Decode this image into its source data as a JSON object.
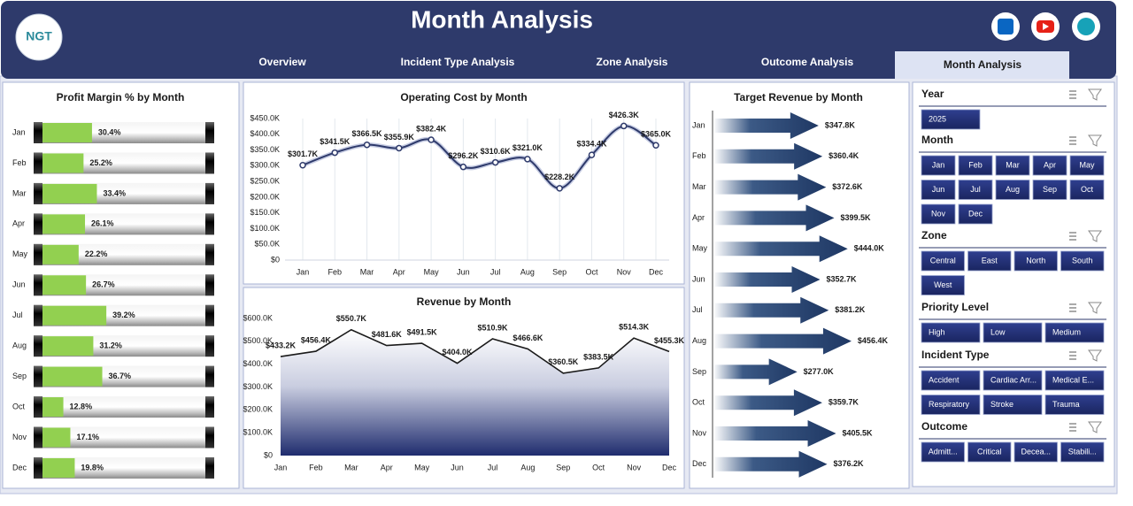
{
  "header": {
    "title": "Month Analysis",
    "logo": "NGT",
    "tabs": [
      "Overview",
      "Incident Type Analysis",
      "Zone Analysis",
      "Outcome Analysis",
      "Month Analysis"
    ],
    "active_tab": "Month Analysis"
  },
  "chart_data": [
    {
      "type": "bar",
      "orientation": "horizontal",
      "title": "Profit Margin % by Month",
      "categories": [
        "Jan",
        "Feb",
        "Mar",
        "Apr",
        "May",
        "Jun",
        "Jul",
        "Aug",
        "Sep",
        "Oct",
        "Nov",
        "Dec"
      ],
      "values": [
        30.4,
        25.2,
        33.4,
        26.1,
        22.2,
        26.7,
        39.2,
        31.2,
        36.7,
        12.8,
        17.1,
        19.8
      ],
      "value_labels": [
        "30.4%",
        "25.2%",
        "33.4%",
        "26.1%",
        "22.2%",
        "26.7%",
        "39.2%",
        "31.2%",
        "36.7%",
        "12.8%",
        "17.1%",
        "19.8%"
      ],
      "color": "#92d050",
      "xlim": [
        0,
        100
      ]
    },
    {
      "type": "line",
      "title": "Operating Cost by Month",
      "categories": [
        "Jan",
        "Feb",
        "Mar",
        "Apr",
        "May",
        "Jun",
        "Jul",
        "Aug",
        "Sep",
        "Oct",
        "Nov",
        "Dec"
      ],
      "values": [
        301700,
        341500,
        366500,
        355900,
        382400,
        296200,
        310600,
        321000,
        228200,
        334400,
        426300,
        365000
      ],
      "value_labels": [
        "$301.7K",
        "$341.5K",
        "$366.5K",
        "$355.9K",
        "$382.4K",
        "$296.2K",
        "$310.6K",
        "$321.0K",
        "$228.2K",
        "$334.4K",
        "$426.3K",
        "$365.0K"
      ],
      "color": "#2e3a6b",
      "ylim": [
        0,
        450000
      ],
      "yticks": [
        {
          "value": 0,
          "label": "$0"
        },
        {
          "value": 50000,
          "label": "$50.0K"
        },
        {
          "value": 100000,
          "label": "$100.0K"
        },
        {
          "value": 150000,
          "label": "$150.0K"
        },
        {
          "value": 200000,
          "label": "$200.0K"
        },
        {
          "value": 250000,
          "label": "$250.0K"
        },
        {
          "value": 300000,
          "label": "$300.0K"
        },
        {
          "value": 350000,
          "label": "$350.0K"
        },
        {
          "value": 400000,
          "label": "$400.0K"
        },
        {
          "value": 450000,
          "label": "$450.0K"
        }
      ]
    },
    {
      "type": "area",
      "title": "Revenue by Month",
      "categories": [
        "Jan",
        "Feb",
        "Mar",
        "Apr",
        "May",
        "Jun",
        "Jul",
        "Aug",
        "Sep",
        "Oct",
        "Nov",
        "Dec"
      ],
      "values": [
        433200,
        456400,
        550700,
        481600,
        491500,
        404000,
        510900,
        466600,
        360500,
        383500,
        514300,
        455300
      ],
      "value_labels": [
        "$433.2K",
        "$456.4K",
        "$550.7K",
        "$481.6K",
        "$491.5K",
        "$404.0K",
        "$510.9K",
        "$466.6K",
        "$360.5K",
        "$383.5K",
        "$514.3K",
        "$455.3K"
      ],
      "color": "#1f2c6e",
      "ylim": [
        0,
        600000
      ],
      "yticks": [
        {
          "value": 0,
          "label": "$0"
        },
        {
          "value": 100000,
          "label": "$100.0K"
        },
        {
          "value": 200000,
          "label": "$200.0K"
        },
        {
          "value": 300000,
          "label": "$300.0K"
        },
        {
          "value": 400000,
          "label": "$400.0K"
        },
        {
          "value": 500000,
          "label": "$500.0K"
        },
        {
          "value": 600000,
          "label": "$600.0K"
        }
      ]
    },
    {
      "type": "arrow",
      "title": "Target Revenue by Month",
      "categories": [
        "Jan",
        "Feb",
        "Mar",
        "Apr",
        "May",
        "Jun",
        "Jul",
        "Aug",
        "Sep",
        "Oct",
        "Nov",
        "Dec"
      ],
      "values": [
        347800,
        360400,
        372600,
        399500,
        444000,
        352700,
        381200,
        456400,
        277000,
        359700,
        405500,
        376200
      ],
      "value_labels": [
        "$347.8K",
        "$360.4K",
        "$372.6K",
        "$399.5K",
        "$444.0K",
        "$352.7K",
        "$381.2K",
        "$456.4K",
        "$277.0K",
        "$359.7K",
        "$405.5K",
        "$376.2K"
      ],
      "color": "#1f3864",
      "xlim": [
        0,
        600000
      ]
    }
  ],
  "slicers": [
    {
      "title": "Year",
      "items": [
        "2025"
      ]
    },
    {
      "title": "Month",
      "items": [
        "Jan",
        "Feb",
        "Mar",
        "Apr",
        "May",
        "Jun",
        "Jul",
        "Aug",
        "Sep",
        "Oct",
        "Nov",
        "Dec"
      ]
    },
    {
      "title": "Zone",
      "items": [
        "Central",
        "East",
        "North",
        "South",
        "West"
      ]
    },
    {
      "title": "Priority Level",
      "items": [
        "High",
        "Low",
        "Medium"
      ]
    },
    {
      "title": "Incident Type",
      "items": [
        "Accident",
        "Cardiac Arr...",
        "Medical E...",
        "Respiratory",
        "Stroke",
        "Trauma"
      ]
    },
    {
      "title": "Outcome",
      "items": [
        "Admitt...",
        "Critical",
        "Decea...",
        "Stabili..."
      ]
    }
  ]
}
